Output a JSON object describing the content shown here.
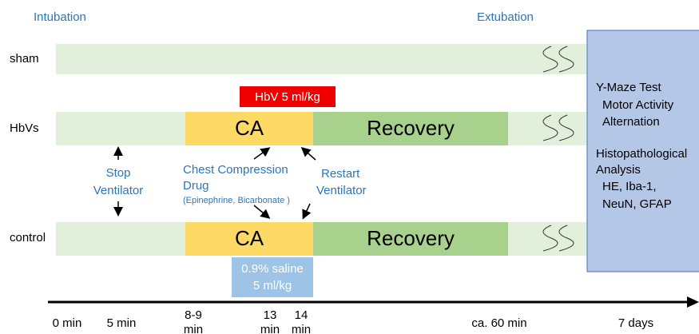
{
  "header": {
    "left": "Intubation",
    "right": "Extubation"
  },
  "rows": [
    {
      "label": "sham"
    },
    {
      "label": "HbVs",
      "phases": [
        "CA",
        "Recovery"
      ]
    },
    {
      "label": "control",
      "phases": [
        "CA",
        "Recovery"
      ]
    }
  ],
  "treatments": {
    "hbv": "HbV 5 ml/kg",
    "saline": [
      "0.9% saline",
      "5 ml/kg"
    ]
  },
  "annotations": {
    "stop": [
      "Stop",
      "Ventilator"
    ],
    "chest": [
      "Chest Compression",
      "Drug",
      "(Epinephrine, Bicarbonate )"
    ],
    "restart": [
      "Restart",
      "Ventilator"
    ]
  },
  "outcomes": {
    "behavior": [
      "Y-Maze Test",
      "Motor Activity",
      "Alternation"
    ],
    "histology": [
      "Histopathological",
      "Analysis",
      "HE, Iba-1,",
      "NeuN,  GFAP"
    ]
  },
  "timeline": [
    [
      "0 min"
    ],
    [
      "5 min"
    ],
    [
      "8-9",
      "min"
    ],
    [
      "13",
      "min"
    ],
    [
      "14",
      "min"
    ],
    [
      "ca. 60 min"
    ],
    [
      "7 days"
    ]
  ]
}
